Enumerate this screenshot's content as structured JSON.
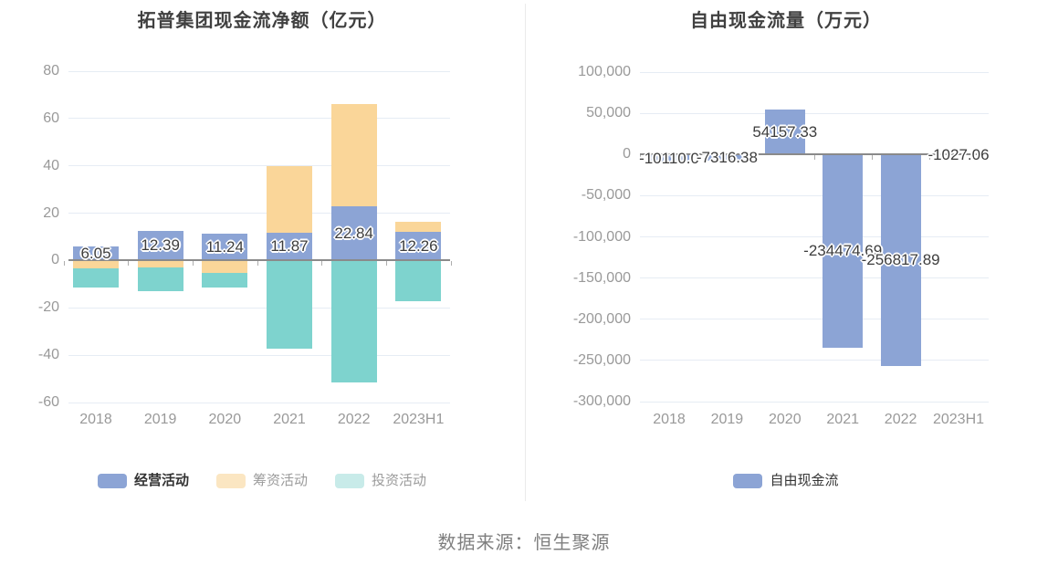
{
  "footer": {
    "source_text": "数据来源：恒生聚源"
  },
  "colors": {
    "grid_line": "#E6ECF4",
    "zero_line": "#8A8A8A",
    "axis_label": "#999999",
    "bar_label": "#3D3D3D",
    "title": "#404040",
    "divider": "#EBEBEB",
    "footer_text": "#7F7F7F",
    "series_blue": "#8CA4D5",
    "series_orange": "#FAD699",
    "series_teal": "#7ED3CE"
  },
  "chart_data": [
    {
      "type": "bar",
      "stacked": true,
      "title": "拓普集团现金流净额（亿元）",
      "unit": "亿元",
      "categories": [
        "2018",
        "2019",
        "2020",
        "2021",
        "2022",
        "2023H1"
      ],
      "series": [
        {
          "name": "经营活动",
          "color": "#8CA4D5",
          "values": [
            6.05,
            12.39,
            11.24,
            11.87,
            22.84,
            12.26
          ],
          "labels": [
            "6.05",
            "12.39",
            "11.24",
            "11.87",
            "22.84",
            "12.26"
          ],
          "show_labels": true
        },
        {
          "name": "筹资活动",
          "color": "#FAD699",
          "values": [
            -3.2,
            -3.0,
            -5.4,
            28.2,
            43.2,
            4.0
          ],
          "show_labels": false
        },
        {
          "name": "投资活动",
          "color": "#7ED3CE",
          "values": [
            -8.2,
            -10.0,
            -5.9,
            -37.3,
            -51.4,
            -17.3
          ],
          "show_labels": false
        }
      ],
      "ylim": [
        -60,
        80
      ],
      "yticks": [
        80,
        60,
        40,
        20,
        0,
        -20,
        -40,
        -60
      ],
      "ytick_labels": [
        "80",
        "60",
        "40",
        "20",
        "0",
        "-20",
        "-40",
        "-60"
      ],
      "grid": true,
      "legend_position": "bottom",
      "legend": [
        {
          "label": "经营活动",
          "swatch": "#8CA4D5",
          "text_color": "#333333",
          "active": true
        },
        {
          "label": "筹资活动",
          "swatch": "#FBE6C2",
          "text_color": "#9B9B9B",
          "active": false
        },
        {
          "label": "投资活动",
          "swatch": "#C8EBE9",
          "text_color": "#9B9B9B",
          "active": false
        }
      ]
    },
    {
      "type": "bar",
      "stacked": false,
      "title": "自由现金流量（万元）",
      "unit": "万元",
      "categories": [
        "2018",
        "2019",
        "2020",
        "2021",
        "2022",
        "2023H1"
      ],
      "series": [
        {
          "name": "自由现金流",
          "color": "#8CA4D5",
          "values": [
            -10110.0,
            -7316.38,
            54157.33,
            -234474.69,
            -256817.89,
            -1027.06
          ],
          "labels": [
            "-10110.0",
            "-7316.38",
            "54157.33",
            "-234474.69",
            "-256817.89",
            "-1027.06"
          ],
          "show_labels": true
        }
      ],
      "ylim": [
        -300000,
        100000
      ],
      "yticks": [
        100000,
        50000,
        0,
        -50000,
        -100000,
        -150000,
        -200000,
        -250000,
        -300000
      ],
      "ytick_labels": [
        "100,000",
        "50,000",
        "0",
        "-50,000",
        "-100,000",
        "-150,000",
        "-200,000",
        "-250,000",
        "-300,000"
      ],
      "grid": true,
      "legend_position": "bottom",
      "legend": [
        {
          "label": "自由现金流",
          "swatch": "#8CA4D5",
          "text_color": "#333333",
          "active": false
        }
      ]
    }
  ]
}
